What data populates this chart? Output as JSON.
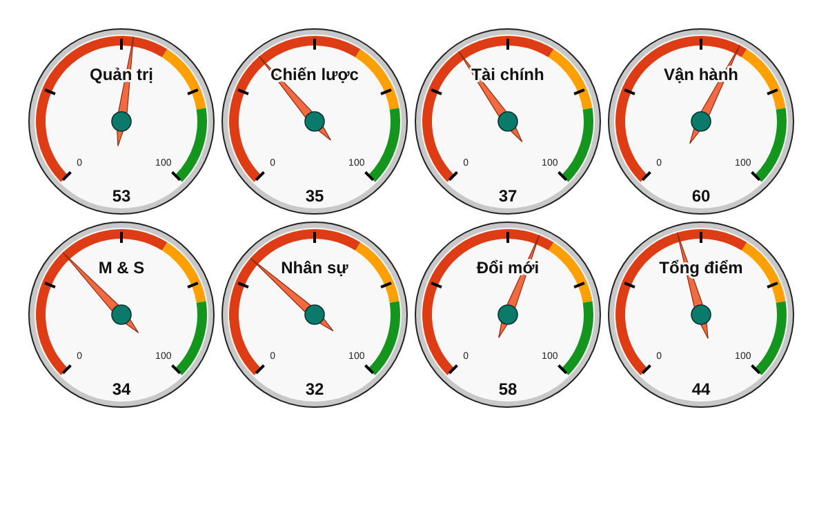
{
  "chart_data": [
    {
      "type": "other",
      "title": "Quản trị",
      "values": [
        53
      ],
      "annotations": [
        "0",
        "100"
      ],
      "data_labels": true
    },
    {
      "type": "other",
      "title": "Chiến lược",
      "values": [
        35
      ],
      "annotations": [
        "0",
        "100"
      ],
      "data_labels": true
    },
    {
      "type": "other",
      "title": "Tài chính",
      "values": [
        37
      ],
      "annotations": [
        "0",
        "100"
      ],
      "data_labels": true
    },
    {
      "type": "other",
      "title": "Vận hành",
      "values": [
        60
      ],
      "annotations": [
        "0",
        "100"
      ],
      "data_labels": true
    },
    {
      "type": "other",
      "title": "M & S",
      "values": [
        34
      ],
      "annotations": [
        "0",
        "100"
      ],
      "data_labels": true
    },
    {
      "type": "other",
      "title": "Nhân sự",
      "values": [
        32
      ],
      "annotations": [
        "0",
        "100"
      ],
      "data_labels": true
    },
    {
      "type": "other",
      "title": "Đổi mới",
      "values": [
        58
      ],
      "annotations": [
        "0",
        "100"
      ],
      "data_labels": true
    },
    {
      "type": "other",
      "title": "Tổng điểm",
      "values": [
        44
      ],
      "annotations": [
        "0",
        "100"
      ],
      "data_labels": true
    }
  ]
}
